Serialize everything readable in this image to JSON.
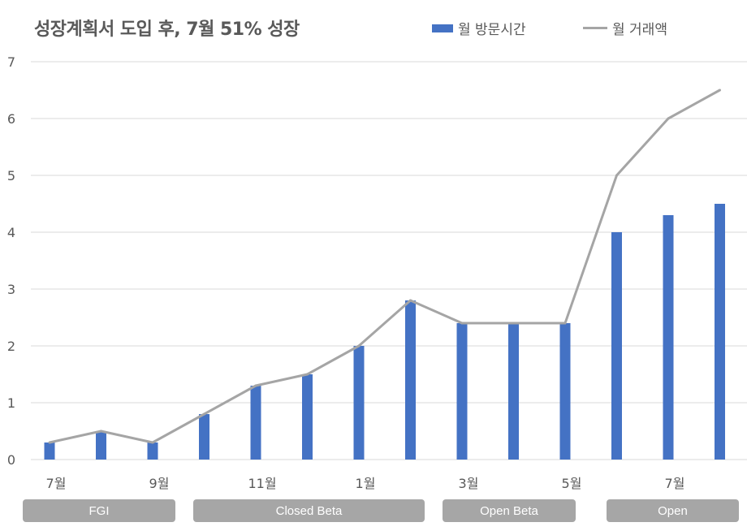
{
  "title": "성장계획서 도입 후, 7월 51% 성장",
  "legend": {
    "bar_label": "월 방문시간",
    "line_label": "월 거래액"
  },
  "colors": {
    "bar": "#4472c4",
    "line": "#a5a5a5",
    "grid": "#d9d9d9",
    "phase_bg": "#a6a6a6"
  },
  "phases": [
    {
      "label": "FGI"
    },
    {
      "label": "Closed Beta"
    },
    {
      "label": "Open Beta"
    },
    {
      "label": "Open"
    }
  ],
  "chart_data": {
    "type": "bar",
    "title": "성장계획서 도입 후, 7월 51% 성장",
    "categories": [
      "7월",
      "",
      "9월",
      "",
      "11월",
      "",
      "1월",
      "",
      "3월",
      "",
      "5월",
      "",
      "7월",
      ""
    ],
    "series": [
      {
        "name": "월 방문시간",
        "type": "bar",
        "values": [
          0.3,
          0.5,
          0.3,
          0.8,
          1.3,
          1.5,
          2.0,
          2.8,
          2.4,
          2.4,
          2.4,
          4.0,
          4.3,
          4.5
        ]
      },
      {
        "name": "월 거래액",
        "type": "line",
        "values": [
          0.3,
          0.5,
          0.3,
          0.8,
          1.3,
          1.5,
          2.0,
          2.8,
          2.4,
          2.4,
          2.4,
          5.0,
          6.0,
          6.5
        ]
      }
    ],
    "yticks": [
      "0",
      "1",
      "2",
      "3",
      "4",
      "5",
      "6",
      "7"
    ],
    "ylim": [
      0,
      7
    ],
    "grid": true,
    "legend_position": "top-right"
  }
}
